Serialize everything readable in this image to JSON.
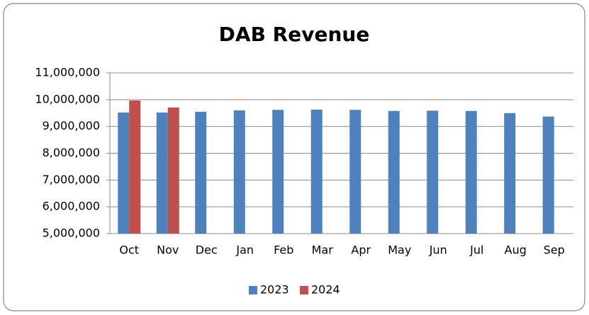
{
  "chart_data": {
    "type": "bar",
    "title": "DAB Revenue",
    "categories": [
      "Oct",
      "Nov",
      "Dec",
      "Jan",
      "Feb",
      "Mar",
      "Apr",
      "May",
      "Jun",
      "Jul",
      "Aug",
      "Sep"
    ],
    "series": [
      {
        "name": "2023",
        "color": "#4f81bd",
        "values": [
          9520000,
          9520000,
          9550000,
          9600000,
          9620000,
          9630000,
          9620000,
          9580000,
          9590000,
          9580000,
          9500000,
          9370000
        ]
      },
      {
        "name": "2024",
        "color": "#c0504d",
        "values": [
          9970000,
          9710000,
          null,
          null,
          null,
          null,
          null,
          null,
          null,
          null,
          null,
          null
        ]
      }
    ],
    "ylim": [
      5000000,
      11000000
    ],
    "yticks": [
      {
        "value": 5000000,
        "label": "5,000,000"
      },
      {
        "value": 6000000,
        "label": "6,000,000"
      },
      {
        "value": 7000000,
        "label": "7,000,000"
      },
      {
        "value": 8000000,
        "label": "8,000,000"
      },
      {
        "value": 9000000,
        "label": "9,000,000"
      },
      {
        "value": 10000000,
        "label": "10,000,000"
      },
      {
        "value": 11000000,
        "label": "11,000,000"
      }
    ],
    "grid": true,
    "legend": "bottom"
  }
}
